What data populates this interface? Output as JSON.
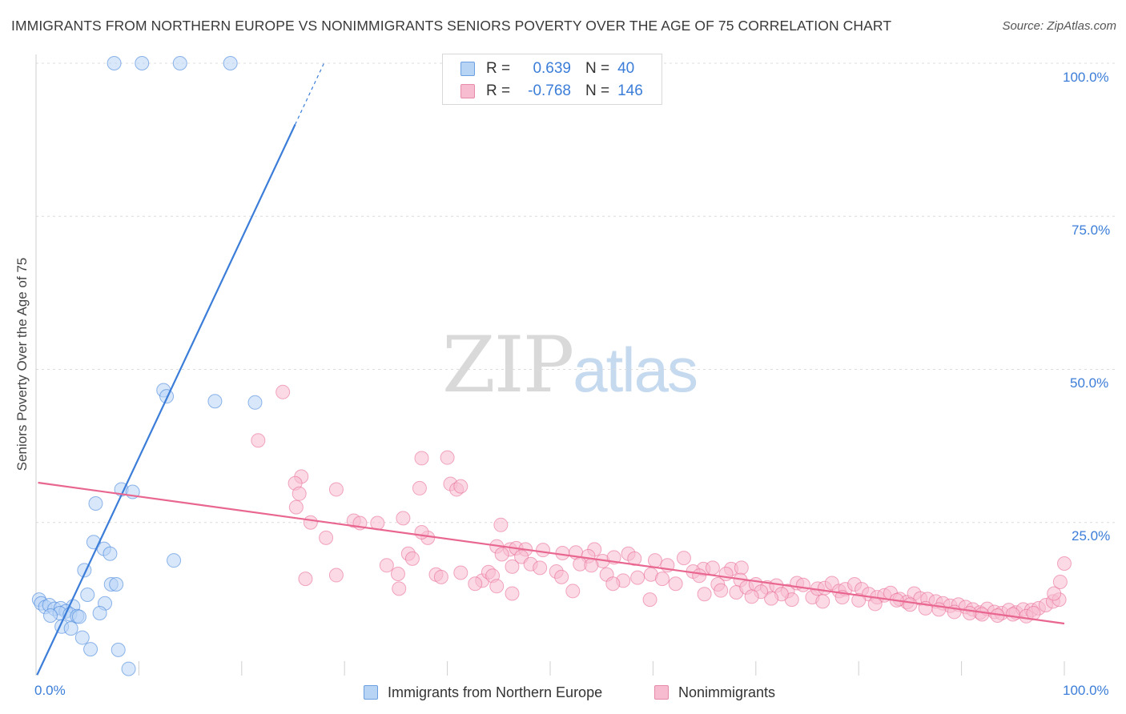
{
  "title": "IMMIGRANTS FROM NORTHERN EUROPE VS NONIMMIGRANTS SENIORS POVERTY OVER THE AGE OF 75 CORRELATION CHART",
  "source": "Source: ZipAtlas.com",
  "watermark": {
    "zip": "ZIP",
    "atlas": "atlas"
  },
  "colors": {
    "blue": "#3b7dd8",
    "blue_fill": "#b8d4f5",
    "pink": "#e8668f",
    "pink_fill": "#f7bcd0",
    "grid": "#dcdcdc"
  },
  "legend": {
    "rows": [
      {
        "r_label": "R =",
        "r_value": "0.639",
        "n_label": "N =",
        "n_value": "40",
        "color": "#b8d4f5",
        "border": "#6a9fe0"
      },
      {
        "r_label": "R =",
        "r_value": "-0.768",
        "n_label": "N =",
        "n_value": "146",
        "color": "#f7bcd0",
        "border": "#e58aa9"
      }
    ]
  },
  "chart_data": {
    "type": "scatter",
    "xlabel": "",
    "ylabel": "Seniors Poverty Over the Age of 75",
    "xlim": [
      0,
      100
    ],
    "ylim": [
      0,
      100
    ],
    "x_tick_labels": [
      "0.0%",
      "100.0%"
    ],
    "y_tick_labels": [
      "100.0%",
      "75.0%",
      "50.0%",
      "25.0%"
    ],
    "y_ticks": [
      100,
      75,
      50,
      25
    ],
    "grid": true,
    "legend_position": "bottom",
    "series": [
      {
        "name": "Immigrants from Northern Europe",
        "color": "#3b7dd8",
        "fill": "#b8d4f5",
        "trend": {
          "x0": 0.1,
          "y0": 0.1,
          "x1": 25.2,
          "y1": 90.0,
          "dash_to_x": 28.0,
          "dash_to_y": 100.0
        },
        "points": [
          [
            7.6,
            100
          ],
          [
            10.3,
            100
          ],
          [
            14.0,
            100
          ],
          [
            18.9,
            100
          ],
          [
            12.4,
            46.6
          ],
          [
            12.7,
            45.6
          ],
          [
            17.4,
            44.8
          ],
          [
            21.3,
            44.6
          ],
          [
            8.3,
            30.4
          ],
          [
            9.4,
            30.0
          ],
          [
            5.8,
            28.1
          ],
          [
            13.4,
            18.8
          ],
          [
            5.6,
            21.8
          ],
          [
            6.6,
            20.7
          ],
          [
            7.2,
            19.9
          ],
          [
            4.7,
            17.2
          ],
          [
            7.3,
            14.9
          ],
          [
            7.8,
            14.9
          ],
          [
            5.0,
            13.2
          ],
          [
            6.7,
            11.8
          ],
          [
            3.6,
            11.3
          ],
          [
            0.3,
            12.4
          ],
          [
            0.5,
            11.8
          ],
          [
            0.9,
            11.2
          ],
          [
            1.3,
            11.5
          ],
          [
            1.8,
            10.9
          ],
          [
            2.4,
            11.0
          ],
          [
            2.9,
            10.5
          ],
          [
            2.3,
            10.2
          ],
          [
            3.3,
            10.0
          ],
          [
            4.0,
            9.7
          ],
          [
            4.2,
            9.6
          ],
          [
            6.2,
            10.2
          ],
          [
            1.4,
            9.8
          ],
          [
            2.5,
            8.0
          ],
          [
            3.4,
            7.7
          ],
          [
            4.5,
            6.2
          ],
          [
            5.3,
            4.3
          ],
          [
            8.0,
            4.2
          ],
          [
            9.0,
            1.1
          ]
        ]
      },
      {
        "name": "Nonimmigrants",
        "color": "#e8668f",
        "fill": "#f7bcd0",
        "trend": {
          "x0": 0.2,
          "y0": 31.5,
          "x1": 100.0,
          "y1": 8.5
        },
        "points": [
          [
            24.0,
            46.3
          ],
          [
            21.6,
            38.4
          ],
          [
            25.8,
            32.5
          ],
          [
            25.2,
            31.4
          ],
          [
            25.6,
            29.7
          ],
          [
            25.3,
            27.5
          ],
          [
            29.2,
            30.4
          ],
          [
            37.5,
            35.5
          ],
          [
            40.0,
            35.6
          ],
          [
            37.3,
            30.6
          ],
          [
            40.3,
            31.3
          ],
          [
            40.9,
            30.4
          ],
          [
            41.3,
            30.9
          ],
          [
            26.7,
            25.0
          ],
          [
            30.9,
            25.3
          ],
          [
            31.5,
            24.9
          ],
          [
            33.2,
            24.9
          ],
          [
            35.7,
            25.7
          ],
          [
            45.2,
            24.6
          ],
          [
            28.2,
            22.5
          ],
          [
            38.1,
            22.5
          ],
          [
            37.5,
            23.4
          ],
          [
            36.2,
            19.9
          ],
          [
            36.6,
            19.1
          ],
          [
            44.8,
            21.1
          ],
          [
            46.1,
            20.6
          ],
          [
            46.7,
            20.8
          ],
          [
            47.6,
            20.6
          ],
          [
            47.2,
            19.4
          ],
          [
            49.3,
            20.5
          ],
          [
            51.2,
            20.0
          ],
          [
            52.5,
            20.1
          ],
          [
            54.3,
            20.6
          ],
          [
            53.7,
            19.5
          ],
          [
            55.1,
            18.7
          ],
          [
            56.2,
            19.3
          ],
          [
            57.6,
            19.9
          ],
          [
            58.2,
            19.1
          ],
          [
            60.2,
            18.8
          ],
          [
            61.4,
            18.0
          ],
          [
            63.0,
            19.2
          ],
          [
            64.9,
            17.4
          ],
          [
            65.8,
            17.6
          ],
          [
            67.6,
            17.4
          ],
          [
            68.6,
            17.6
          ],
          [
            34.1,
            18.0
          ],
          [
            35.2,
            16.6
          ],
          [
            35.3,
            14.2
          ],
          [
            26.2,
            15.8
          ],
          [
            29.2,
            16.4
          ],
          [
            38.9,
            16.5
          ],
          [
            39.4,
            16.1
          ],
          [
            41.3,
            16.8
          ],
          [
            43.4,
            15.5
          ],
          [
            44.0,
            16.9
          ],
          [
            44.4,
            16.3
          ],
          [
            45.3,
            19.8
          ],
          [
            46.3,
            17.8
          ],
          [
            48.1,
            18.2
          ],
          [
            49.0,
            17.6
          ],
          [
            50.6,
            17.0
          ],
          [
            51.1,
            16.1
          ],
          [
            52.9,
            18.2
          ],
          [
            54.0,
            18.0
          ],
          [
            55.5,
            16.5
          ],
          [
            57.1,
            15.5
          ],
          [
            58.5,
            16.0
          ],
          [
            59.8,
            16.5
          ],
          [
            60.9,
            15.8
          ],
          [
            62.2,
            15.0
          ],
          [
            63.9,
            17.0
          ],
          [
            64.5,
            16.3
          ],
          [
            66.3,
            14.9
          ],
          [
            67.1,
            16.6
          ],
          [
            68.5,
            15.6
          ],
          [
            42.7,
            15.0
          ],
          [
            44.8,
            14.6
          ],
          [
            46.3,
            13.4
          ],
          [
            52.2,
            13.8
          ],
          [
            56.1,
            15.0
          ],
          [
            59.7,
            12.4
          ],
          [
            65.0,
            13.3
          ],
          [
            66.6,
            13.9
          ],
          [
            68.1,
            13.6
          ],
          [
            69.1,
            14.4
          ],
          [
            70.0,
            14.9
          ],
          [
            71.1,
            14.4
          ],
          [
            72.0,
            14.7
          ],
          [
            73.1,
            13.8
          ],
          [
            74.0,
            15.1
          ],
          [
            74.6,
            14.8
          ],
          [
            75.5,
            12.8
          ],
          [
            76.0,
            14.2
          ],
          [
            76.7,
            14.3
          ],
          [
            77.4,
            15.1
          ],
          [
            78.1,
            13.8
          ],
          [
            78.7,
            14.1
          ],
          [
            79.6,
            14.9
          ],
          [
            80.3,
            14.1
          ],
          [
            81.0,
            13.3
          ],
          [
            81.8,
            12.8
          ],
          [
            82.5,
            13.1
          ],
          [
            83.1,
            13.5
          ],
          [
            84.0,
            12.5
          ],
          [
            84.7,
            12.0
          ],
          [
            85.4,
            13.4
          ],
          [
            86.0,
            12.6
          ],
          [
            86.7,
            12.5
          ],
          [
            87.5,
            12.1
          ],
          [
            88.2,
            11.8
          ],
          [
            88.9,
            11.4
          ],
          [
            89.7,
            11.6
          ],
          [
            90.4,
            11.2
          ],
          [
            91.1,
            10.8
          ],
          [
            91.8,
            10.3
          ],
          [
            92.5,
            10.9
          ],
          [
            93.2,
            10.4
          ],
          [
            93.9,
            10.2
          ],
          [
            94.6,
            10.7
          ],
          [
            95.3,
            10.3
          ],
          [
            96.0,
            10.8
          ],
          [
            96.8,
            10.7
          ],
          [
            97.5,
            11.0
          ],
          [
            98.2,
            11.5
          ],
          [
            98.9,
            12.1
          ],
          [
            99.5,
            12.4
          ],
          [
            99.0,
            13.4
          ],
          [
            99.6,
            15.3
          ],
          [
            100.0,
            18.3
          ],
          [
            83.7,
            12.3
          ],
          [
            85.0,
            11.6
          ],
          [
            86.5,
            11.0
          ],
          [
            87.8,
            10.8
          ],
          [
            89.3,
            10.4
          ],
          [
            90.8,
            10.2
          ],
          [
            92.0,
            10.0
          ],
          [
            93.5,
            9.8
          ],
          [
            95.0,
            10.0
          ],
          [
            96.3,
            9.7
          ],
          [
            97.0,
            10.2
          ],
          [
            81.6,
            11.7
          ],
          [
            80.0,
            12.3
          ],
          [
            78.4,
            12.8
          ],
          [
            76.5,
            12.1
          ],
          [
            73.5,
            12.4
          ],
          [
            72.5,
            13.3
          ],
          [
            71.5,
            12.6
          ],
          [
            70.5,
            13.7
          ],
          [
            69.6,
            12.9
          ]
        ]
      }
    ]
  },
  "bottom_legend": [
    {
      "label": "Immigrants from Northern Europe"
    },
    {
      "label": "Nonimmigrants"
    }
  ]
}
